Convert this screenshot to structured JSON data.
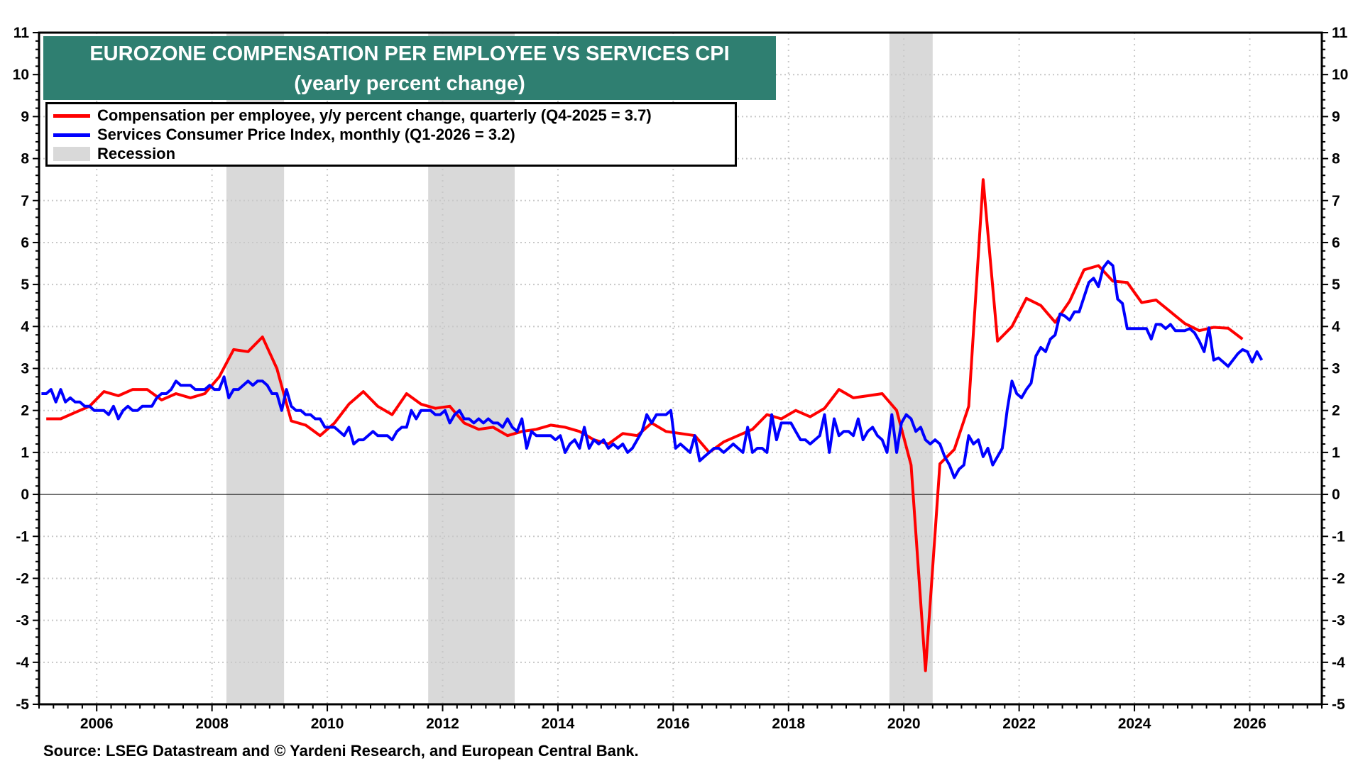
{
  "chart_data": {
    "type": "line",
    "title": "EUROZONE COMPENSATION PER EMPLOYEE VS SERVICES CPI",
    "subtitle": "(yearly percent change)",
    "xlim": [
      2005.0,
      2027.25
    ],
    "ylim": [
      -5,
      11
    ],
    "x_ticks": [
      "2006",
      "2008",
      "2010",
      "2012",
      "2014",
      "2016",
      "2018",
      "2020",
      "2022",
      "2024",
      "2026"
    ],
    "y_ticks": [
      "11",
      "10",
      "9",
      "8",
      "7",
      "6",
      "5",
      "4",
      "3",
      "2",
      "1",
      "0",
      "-1",
      "-2",
      "-3",
      "-4",
      "-5"
    ],
    "grid": true,
    "legend_position": "top-left",
    "recessions": [
      [
        2008.25,
        2009.25
      ],
      [
        2011.75,
        2013.25
      ],
      [
        2019.75,
        2020.5
      ]
    ],
    "series": [
      {
        "name": "Compensation per employee, y/y percent change, quarterly (Q4-2025 = 3.7)",
        "color": "#ff0000",
        "frequency": "quarterly",
        "start": "Q1-2005",
        "values": [
          1.8,
          1.8,
          1.95,
          2.1,
          2.45,
          2.35,
          2.5,
          2.5,
          2.25,
          2.4,
          2.3,
          2.4,
          2.8,
          3.45,
          3.4,
          3.75,
          3.0,
          1.75,
          1.65,
          1.4,
          1.7,
          2.15,
          2.45,
          2.1,
          1.9,
          2.4,
          2.15,
          2.05,
          2.1,
          1.7,
          1.55,
          1.6,
          1.4,
          1.5,
          1.55,
          1.65,
          1.6,
          1.5,
          1.3,
          1.2,
          1.45,
          1.4,
          1.7,
          1.5,
          1.45,
          1.4,
          1.0,
          1.25,
          1.4,
          1.55,
          1.9,
          1.8,
          2.0,
          1.85,
          2.05,
          2.5,
          2.3,
          2.35,
          2.4,
          2.0,
          0.7,
          -4.2,
          0.73,
          1.07,
          2.1,
          7.5,
          3.65,
          4.0,
          4.67,
          4.5,
          4.1,
          4.6,
          5.35,
          5.45,
          5.08,
          5.05,
          4.57,
          4.63,
          4.35,
          4.07,
          3.9,
          3.98,
          3.96,
          3.7
        ]
      },
      {
        "name": "Services Consumer Price Index, monthly (Q1-2026 = 3.2)",
        "color": "#0000ff",
        "frequency": "monthly",
        "start": "2005-01",
        "values": [
          2.4,
          2.4,
          2.5,
          2.2,
          2.5,
          2.2,
          2.3,
          2.2,
          2.2,
          2.1,
          2.1,
          2.0,
          2.0,
          2.0,
          1.9,
          2.1,
          1.8,
          2.0,
          2.1,
          2.0,
          2.0,
          2.1,
          2.1,
          2.1,
          2.3,
          2.4,
          2.4,
          2.5,
          2.7,
          2.6,
          2.6,
          2.6,
          2.5,
          2.5,
          2.5,
          2.6,
          2.5,
          2.5,
          2.8,
          2.3,
          2.5,
          2.5,
          2.6,
          2.7,
          2.6,
          2.7,
          2.7,
          2.6,
          2.4,
          2.4,
          2.0,
          2.5,
          2.1,
          2.0,
          2.0,
          1.9,
          1.9,
          1.8,
          1.8,
          1.6,
          1.6,
          1.6,
          1.5,
          1.4,
          1.6,
          1.2,
          1.3,
          1.3,
          1.4,
          1.5,
          1.4,
          1.4,
          1.4,
          1.3,
          1.5,
          1.6,
          1.6,
          2.0,
          1.8,
          2.0,
          2.0,
          2.0,
          1.9,
          1.9,
          2.0,
          1.7,
          1.9,
          2.0,
          1.8,
          1.8,
          1.7,
          1.8,
          1.7,
          1.8,
          1.7,
          1.7,
          1.6,
          1.8,
          1.6,
          1.5,
          1.8,
          1.1,
          1.5,
          1.4,
          1.4,
          1.4,
          1.4,
          1.3,
          1.4,
          1.0,
          1.2,
          1.3,
          1.1,
          1.6,
          1.1,
          1.3,
          1.2,
          1.3,
          1.1,
          1.2,
          1.1,
          1.2,
          1.0,
          1.1,
          1.3,
          1.5,
          1.9,
          1.7,
          1.9,
          1.9,
          1.9,
          2.0,
          1.1,
          1.2,
          1.1,
          1.0,
          1.4,
          0.8,
          0.9,
          1.0,
          1.1,
          1.1,
          1.0,
          1.1,
          1.2,
          1.1,
          1.0,
          1.6,
          1.0,
          1.1,
          1.1,
          1.0,
          1.9,
          1.3,
          1.7,
          1.7,
          1.7,
          1.5,
          1.3,
          1.3,
          1.2,
          1.3,
          1.4,
          1.9,
          1.0,
          1.8,
          1.4,
          1.5,
          1.5,
          1.4,
          1.8,
          1.3,
          1.5,
          1.6,
          1.4,
          1.3,
          1.0,
          1.9,
          1.0,
          1.7,
          1.9,
          1.8,
          1.5,
          1.6,
          1.3,
          1.2,
          1.3,
          1.2,
          0.9,
          0.7,
          0.4,
          0.6,
          0.7,
          1.4,
          1.2,
          1.3,
          0.9,
          1.1,
          0.7,
          0.9,
          1.1,
          2.0,
          2.7,
          2.4,
          2.3,
          2.5,
          2.65,
          3.3,
          3.5,
          3.4,
          3.7,
          3.8,
          4.3,
          4.25,
          4.15,
          4.35,
          4.35,
          4.7,
          5.05,
          5.15,
          4.95,
          5.4,
          5.55,
          5.45,
          4.65,
          4.55,
          3.95,
          3.95,
          3.95,
          3.95,
          3.95,
          3.7,
          4.05,
          4.05,
          3.95,
          4.05,
          3.9,
          3.9,
          3.9,
          3.95,
          3.85,
          3.65,
          3.4,
          3.97,
          3.2,
          3.25,
          3.15,
          3.05,
          3.2,
          3.35,
          3.45,
          3.4,
          3.15,
          3.4,
          3.2
        ]
      }
    ],
    "legend": {
      "red": "Compensation per employee, y/y percent change, quarterly (Q4-2025 = 3.7)",
      "blue": "Services Consumer Price Index, monthly (Q1-2026 = 3.2)",
      "recession": "Recession"
    },
    "colors": {
      "title_bg": "#2f7f71",
      "recession": "#d9d9d9",
      "red": "#ff0000",
      "blue": "#0000ff"
    },
    "source": "Source: LSEG Datastream and © Yardeni Research, and European Central Bank."
  }
}
